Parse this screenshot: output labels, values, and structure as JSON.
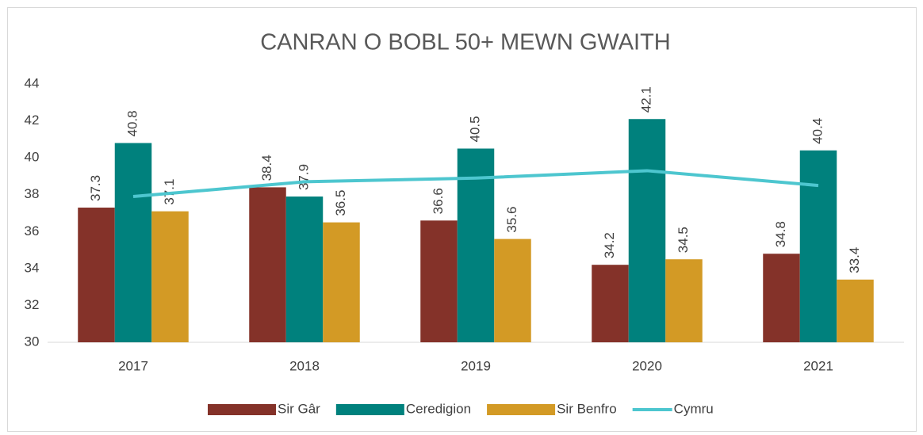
{
  "chart_data": {
    "type": "bar_line",
    "title": "CANRAN O BOBL 50+ MEWN GWAITH",
    "categories": [
      "2017",
      "2018",
      "2019",
      "2020",
      "2021"
    ],
    "series": [
      {
        "name": "Sir Gâr",
        "color": "#843229",
        "type": "bar",
        "values": [
          37.3,
          38.4,
          36.6,
          34.2,
          34.8
        ]
      },
      {
        "name": "Ceredigion",
        "color": "#00817d",
        "type": "bar",
        "values": [
          40.8,
          37.9,
          40.5,
          42.1,
          40.4
        ]
      },
      {
        "name": "Sir Benfro",
        "color": "#d39a25",
        "type": "bar",
        "values": [
          37.1,
          36.5,
          35.6,
          34.5,
          33.4
        ]
      },
      {
        "name": "Cymru",
        "color": "#4dc6cf",
        "type": "line",
        "values": [
          37.9,
          38.7,
          38.9,
          39.3,
          38.5
        ]
      }
    ],
    "ylim": [
      30,
      44
    ],
    "yticks": [
      30,
      32,
      34,
      36,
      38,
      40,
      42,
      44
    ],
    "grid": false,
    "legend": "bottom"
  }
}
